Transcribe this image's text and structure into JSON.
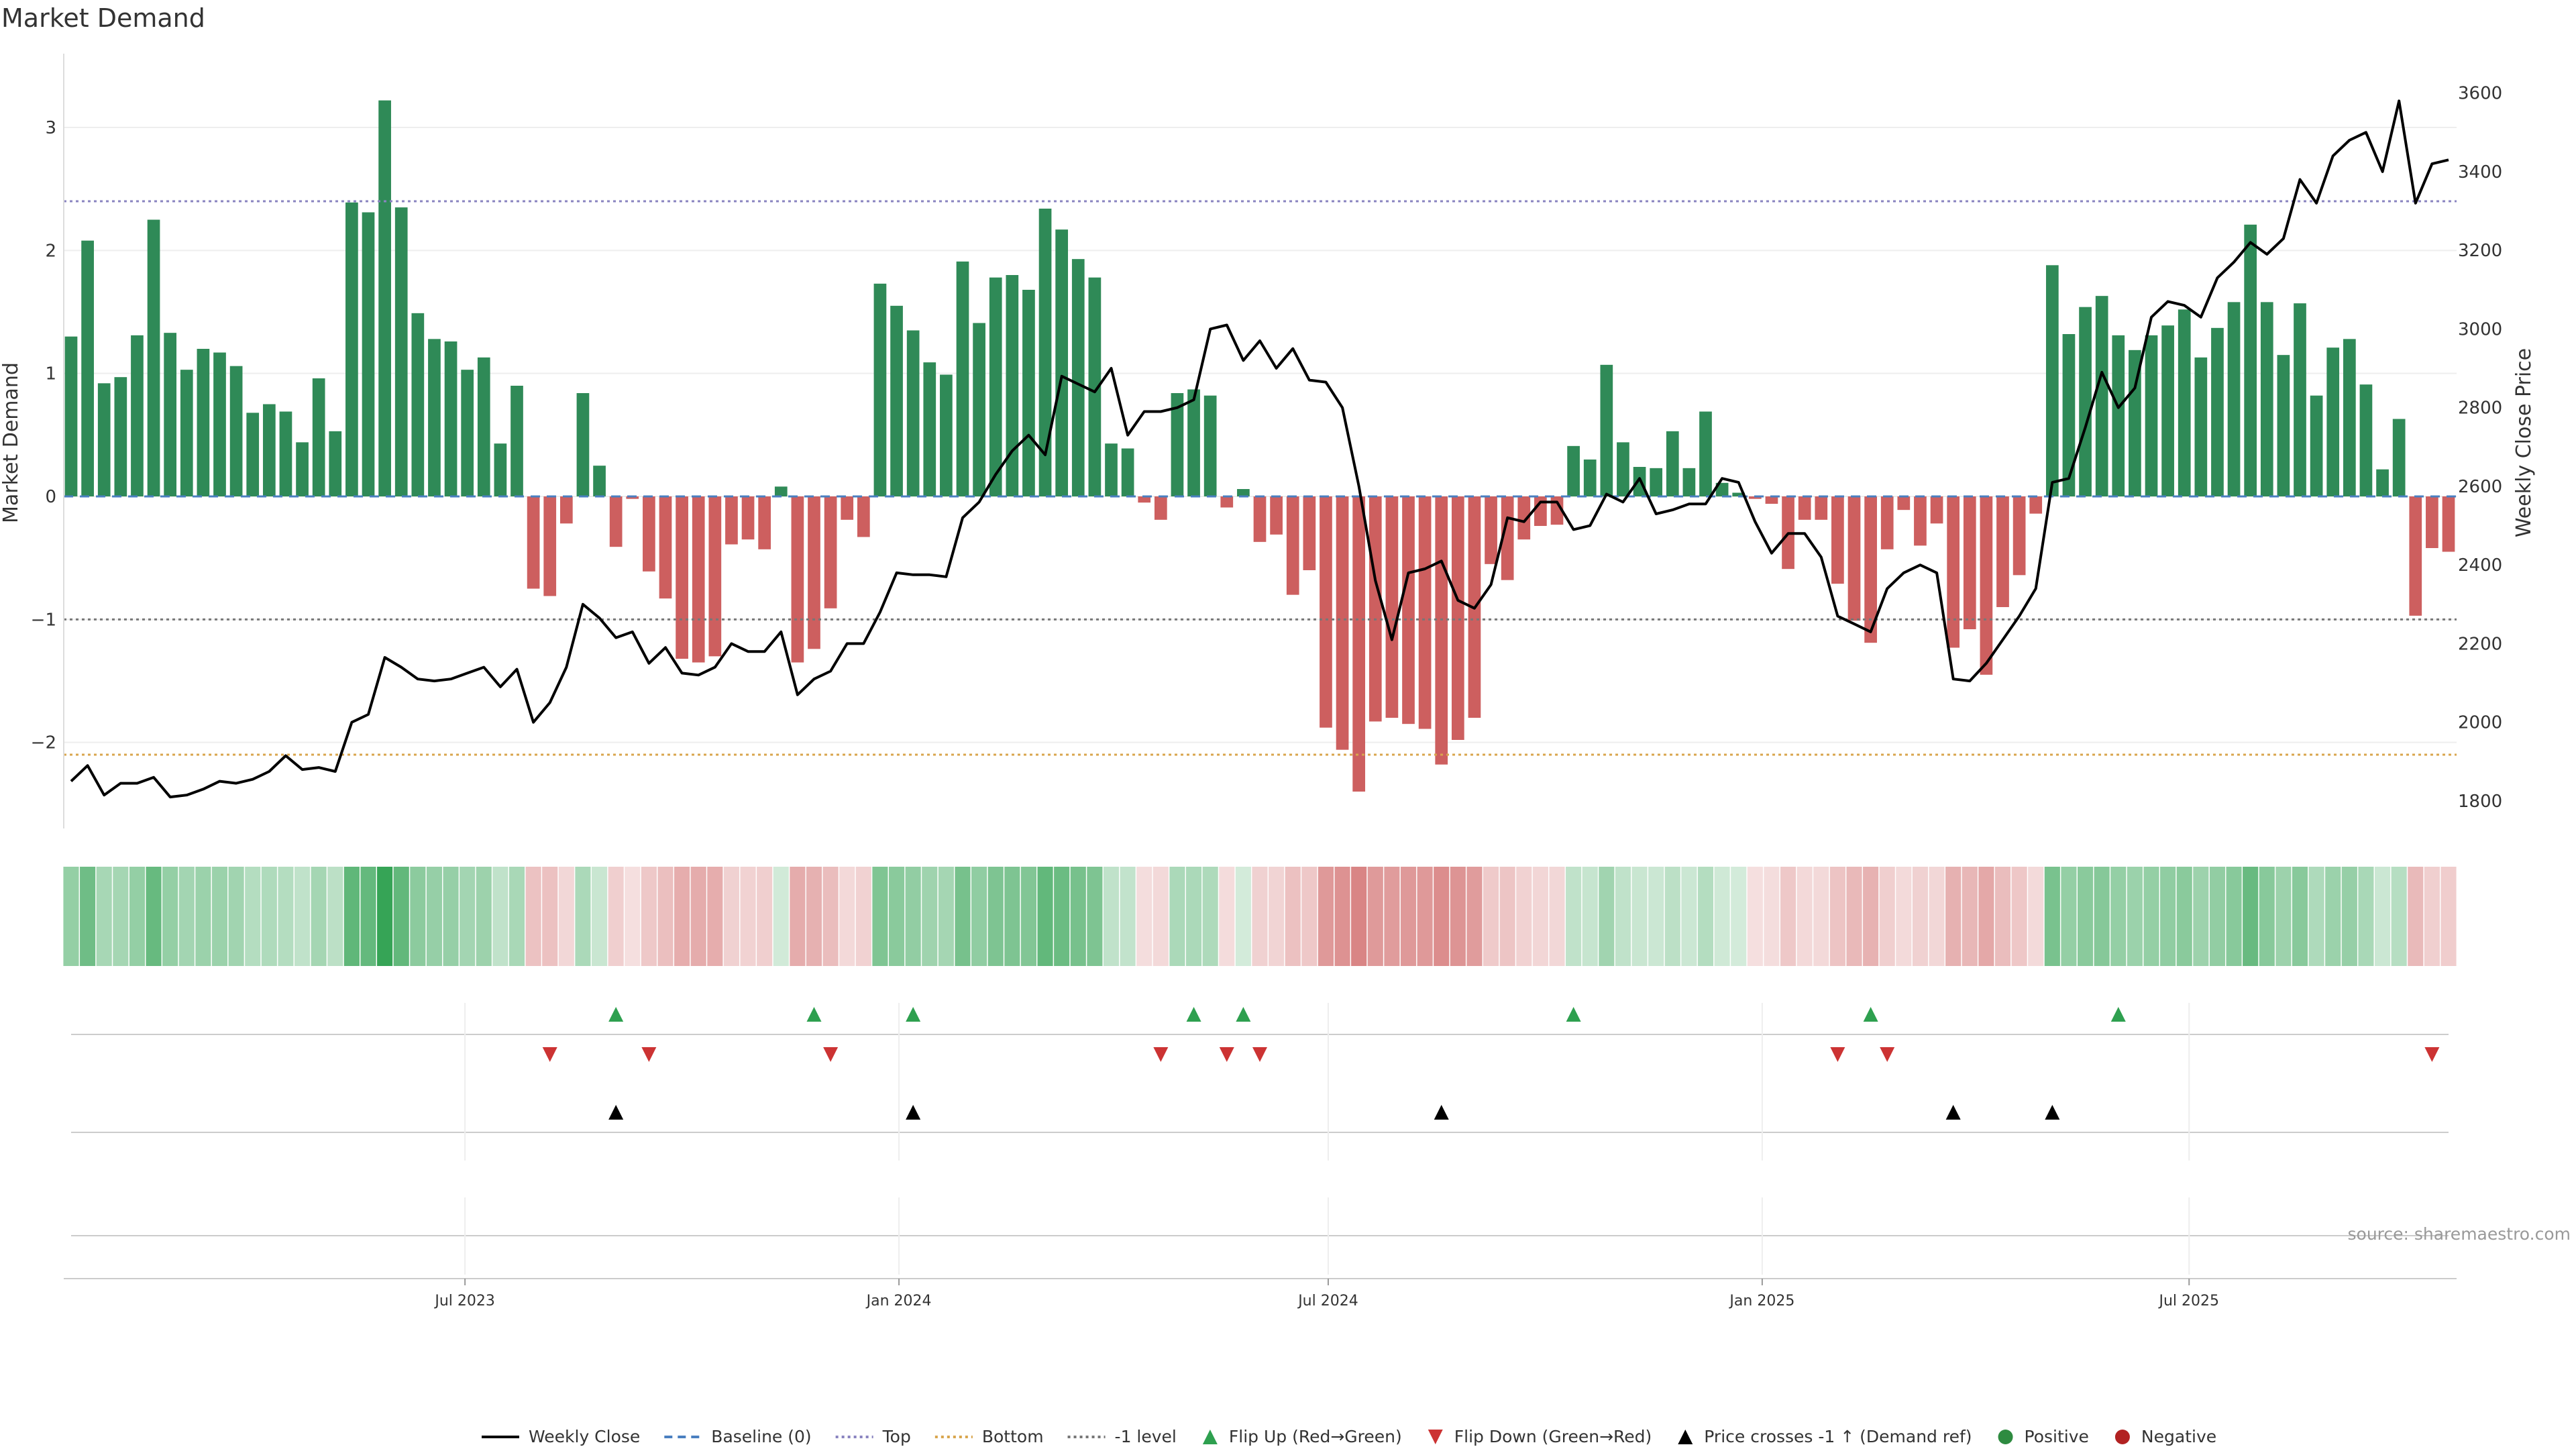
{
  "chart_data": {
    "type": "bar",
    "title": "Market Demand",
    "ylabel": "Market Demand",
    "y2label": "Weekly Close Price",
    "ylim": [
      -2.7,
      3.6
    ],
    "y2lim": [
      1730,
      3700
    ],
    "yticks": [
      -2,
      -1,
      0,
      1,
      2,
      3
    ],
    "yticklabels": [
      "−2",
      "−1",
      "0",
      "1",
      "2",
      "3"
    ],
    "y2ticks": [
      1800,
      2000,
      2200,
      2400,
      2600,
      2800,
      3000,
      3200,
      3400,
      3600
    ],
    "x_dates": [
      "2023-01-15",
      "2023-01-22",
      "2023-01-29",
      "2023-02-05",
      "2023-02-12",
      "2023-02-19",
      "2023-02-26",
      "2023-03-05",
      "2023-03-12",
      "2023-03-19",
      "2023-03-26",
      "2023-04-02",
      "2023-04-09",
      "2023-04-16",
      "2023-04-23",
      "2023-04-30",
      "2023-05-07",
      "2023-05-14",
      "2023-05-21",
      "2023-05-28",
      "2023-06-04",
      "2023-06-11",
      "2023-06-18",
      "2023-06-25",
      "2023-07-02",
      "2023-07-09",
      "2023-07-16",
      "2023-07-23",
      "2023-07-30",
      "2023-08-06",
      "2023-08-13",
      "2023-08-20",
      "2023-08-27",
      "2023-09-03",
      "2023-09-10",
      "2023-09-17",
      "2023-09-24",
      "2023-10-01",
      "2023-10-08",
      "2023-10-15",
      "2023-10-22",
      "2023-10-29",
      "2023-11-05",
      "2023-11-12",
      "2023-11-19",
      "2023-11-26",
      "2023-12-03",
      "2023-12-10",
      "2023-12-17",
      "2023-12-24",
      "2023-12-31",
      "2024-01-07",
      "2024-01-14",
      "2024-01-21",
      "2024-01-28",
      "2024-02-04",
      "2024-02-11",
      "2024-02-18",
      "2024-02-25",
      "2024-03-03",
      "2024-03-10",
      "2024-03-17",
      "2024-03-24",
      "2024-03-31",
      "2024-04-07",
      "2024-04-14",
      "2024-04-21",
      "2024-04-28",
      "2024-05-05",
      "2024-05-12",
      "2024-05-19",
      "2024-05-26",
      "2024-06-02",
      "2024-06-09",
      "2024-06-16",
      "2024-06-23",
      "2024-06-30",
      "2024-07-07",
      "2024-07-14",
      "2024-07-21",
      "2024-07-28",
      "2024-08-04",
      "2024-08-11",
      "2024-08-18",
      "2024-08-25",
      "2024-09-01",
      "2024-09-08",
      "2024-09-15",
      "2024-09-22",
      "2024-09-29",
      "2024-10-06",
      "2024-10-13",
      "2024-10-20",
      "2024-10-27",
      "2024-11-03",
      "2024-11-10",
      "2024-11-17",
      "2024-11-24",
      "2024-12-01",
      "2024-12-08",
      "2024-12-15",
      "2024-12-22",
      "2024-12-29",
      "2025-01-05",
      "2025-01-12",
      "2025-01-19",
      "2025-01-26",
      "2025-02-02",
      "2025-02-09",
      "2025-02-16",
      "2025-02-23",
      "2025-03-02",
      "2025-03-09",
      "2025-03-16",
      "2025-03-23",
      "2025-03-30",
      "2025-04-06",
      "2025-04-13",
      "2025-04-20",
      "2025-04-27",
      "2025-05-04",
      "2025-05-11",
      "2025-05-18",
      "2025-05-25",
      "2025-06-01",
      "2025-06-08",
      "2025-06-15",
      "2025-06-22",
      "2025-06-29",
      "2025-07-06",
      "2025-07-13",
      "2025-07-20",
      "2025-07-27",
      "2025-08-03",
      "2025-08-10",
      "2025-08-17",
      "2025-08-24",
      "2025-08-31",
      "2025-09-07",
      "2025-09-14",
      "2025-09-21",
      "2025-09-28",
      "2025-10-05",
      "2025-10-12",
      "2025-10-19"
    ],
    "series": [
      {
        "name": "Market Demand",
        "type": "bar",
        "values": [
          1.3,
          2.08,
          0.92,
          0.97,
          1.31,
          2.25,
          1.33,
          1.03,
          1.2,
          1.17,
          1.06,
          0.68,
          0.75,
          0.69,
          0.44,
          0.96,
          0.53,
          2.39,
          2.31,
          3.22,
          2.35,
          1.49,
          1.28,
          1.26,
          1.03,
          1.13,
          0.43,
          0.9,
          -0.75,
          -0.81,
          -0.22,
          0.84,
          0.25,
          -0.41,
          -0.02,
          -0.61,
          -0.83,
          -1.32,
          -1.35,
          -1.3,
          -0.39,
          -0.35,
          -0.43,
          0.08,
          -1.35,
          -1.24,
          -0.91,
          -0.19,
          -0.33,
          1.73,
          1.55,
          1.35,
          1.09,
          0.99,
          1.91,
          1.41,
          1.78,
          1.8,
          1.68,
          2.34,
          2.17,
          1.93,
          1.78,
          0.43,
          0.39,
          -0.05,
          -0.19,
          0.84,
          0.87,
          0.82,
          -0.09,
          0.06,
          -0.37,
          -0.31,
          -0.8,
          -0.6,
          -1.88,
          -2.06,
          -2.4,
          -1.83,
          -1.8,
          -1.85,
          -1.89,
          -2.18,
          -1.98,
          -1.8,
          -0.55,
          -0.68,
          -0.35,
          -0.24,
          -0.23,
          0.41,
          0.3,
          1.07,
          0.44,
          0.24,
          0.23,
          0.53,
          0.23,
          0.69,
          0.11,
          0.03,
          -0.02,
          -0.06,
          -0.59,
          -0.19,
          -0.19,
          -0.71,
          -1.01,
          -1.19,
          -0.43,
          -0.11,
          -0.4,
          -0.22,
          -1.23,
          -1.08,
          -1.45,
          -0.9,
          -0.64,
          -0.14,
          1.88,
          1.32,
          1.54,
          1.63,
          1.31,
          1.19,
          1.31,
          1.39,
          1.52,
          1.13,
          1.37,
          1.58,
          2.21,
          1.58,
          1.15,
          1.57,
          0.82,
          1.21,
          1.28,
          0.91,
          0.22,
          0.63,
          -0.97,
          -0.42,
          -0.45
        ]
      },
      {
        "name": "Weekly Close",
        "type": "line",
        "axis": "right",
        "values": [
          1850,
          1890,
          1815,
          1845,
          1845,
          1860,
          1810,
          1815,
          1830,
          1850,
          1845,
          1855,
          1875,
          1915,
          1880,
          1885,
          1875,
          2000,
          2020,
          2165,
          2140,
          2110,
          2105,
          2110,
          2125,
          2140,
          2090,
          2135,
          2000,
          2050,
          2140,
          2300,
          2265,
          2215,
          2230,
          2150,
          2190,
          2125,
          2120,
          2140,
          2200,
          2180,
          2180,
          2230,
          2070,
          2110,
          2130,
          2200,
          2200,
          2280,
          2380,
          2375,
          2375,
          2370,
          2520,
          2560,
          2630,
          2690,
          2730,
          2680,
          2880,
          2860,
          2840,
          2900,
          2730,
          2790,
          2790,
          2800,
          2820,
          3000,
          3010,
          2920,
          2970,
          2900,
          2950,
          2870,
          2865,
          2800,
          2600,
          2360,
          2210,
          2380,
          2390,
          2410,
          2310,
          2290,
          2350,
          2520,
          2510,
          2560,
          2560,
          2490,
          2500,
          2580,
          2560,
          2620,
          2530,
          2540,
          2555,
          2555,
          2620,
          2610,
          2510,
          2430,
          2480,
          2480,
          2420,
          2270,
          2250,
          2230,
          2340,
          2380,
          2400,
          2380,
          2110,
          2105,
          2150,
          2210,
          2270,
          2340,
          2610,
          2620,
          2750,
          2890,
          2800,
          2850,
          3030,
          3070,
          3060,
          3030,
          3130,
          3170,
          3220,
          3190,
          3230,
          3380,
          3320,
          3440,
          3480,
          3500,
          3400,
          3580,
          3320,
          3420,
          3430
        ]
      }
    ],
    "reference_lines": [
      {
        "name": "Top",
        "value": 2.4,
        "color": "#8a84c0",
        "style": "dotted"
      },
      {
        "name": "-1 level",
        "value": -1,
        "color": "#777777",
        "style": "dotted"
      },
      {
        "name": "Bottom",
        "value": -2.1,
        "color": "#d9a64e",
        "style": "dotted"
      },
      {
        "name": "Baseline (0)",
        "value": 0,
        "color": "#4a7fc0",
        "style": "dashed"
      }
    ],
    "xticks": [
      {
        "date": "2023-07-01",
        "label": "Jul 2023"
      },
      {
        "date": "2024-01-01",
        "label": "Jan 2024"
      },
      {
        "date": "2024-07-01",
        "label": "Jul 2024"
      },
      {
        "date": "2025-01-01",
        "label": "Jan 2025"
      },
      {
        "date": "2025-07-01",
        "label": "Jul 2025"
      }
    ],
    "signals": {
      "flip_up": [
        "2023-09-03",
        "2023-11-26",
        "2024-01-07",
        "2024-05-05",
        "2024-05-26",
        "2024-10-13",
        "2025-02-16",
        "2025-06-01"
      ],
      "flip_down": [
        "2023-08-06",
        "2023-09-17",
        "2023-12-03",
        "2024-04-21",
        "2024-05-19",
        "2024-06-02",
        "2025-02-02",
        "2025-02-23",
        "2025-10-12"
      ],
      "price_crosses": [
        "2023-09-03",
        "2024-01-07",
        "2024-08-18",
        "2025-03-23",
        "2025-05-04"
      ]
    },
    "legend": {
      "placement": "bottom",
      "entries": [
        {
          "label": "Weekly Close",
          "marker": "line",
          "color": "#000000"
        },
        {
          "label": "Baseline (0)",
          "marker": "dashed",
          "color": "#4a7fc0"
        },
        {
          "label": "Top",
          "marker": "dotted",
          "color": "#8a84c0"
        },
        {
          "label": "Bottom",
          "marker": "dotted",
          "color": "#d9a64e"
        },
        {
          "label": "-1 level",
          "marker": "dotted",
          "color": "#777777"
        },
        {
          "label": "Flip Up (Red→Green)",
          "marker": "triangle-up",
          "color": "#2ea04f"
        },
        {
          "label": "Flip Down (Green→Red)",
          "marker": "triangle-down",
          "color": "#cc3333"
        },
        {
          "label": "Price crosses -1 ↑ (Demand ref)",
          "marker": "triangle-up",
          "color": "#000000"
        },
        {
          "label": "Positive",
          "marker": "circle",
          "color": "#2e8b40"
        },
        {
          "label": "Negative",
          "marker": "circle",
          "color": "#b22222"
        }
      ]
    },
    "colors": {
      "positive": "#2f8a57",
      "negative": "#cd5f5f",
      "price": "#000000"
    },
    "grid": true,
    "source": "source: sharemaestro.com"
  }
}
